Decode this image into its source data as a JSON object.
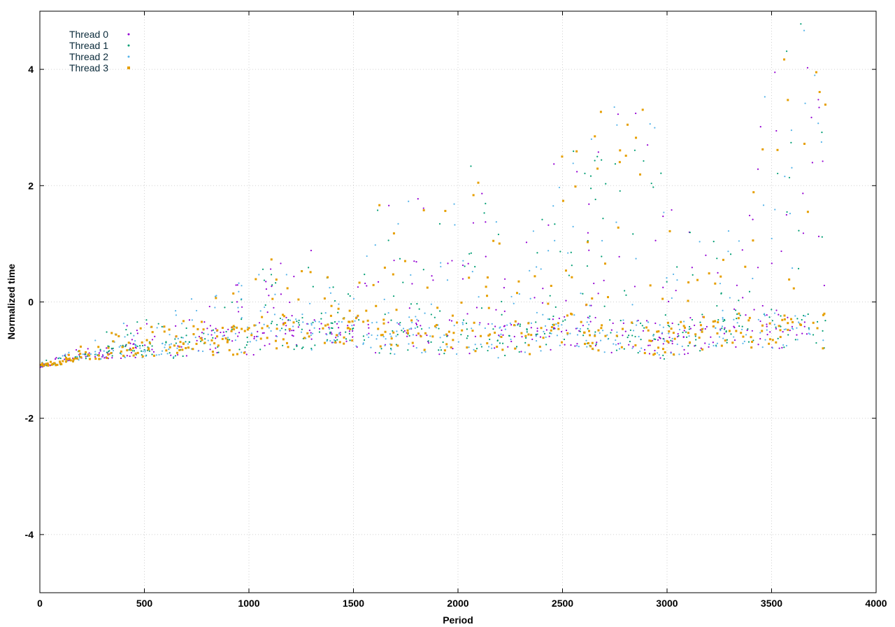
{
  "chart_data": {
    "type": "scatter",
    "title": "",
    "xlabel": "Period",
    "ylabel": "Normalized time",
    "xlim": [
      0,
      4000
    ],
    "ylim": [
      -5,
      5
    ],
    "xticks": [
      0,
      500,
      1000,
      1500,
      2000,
      2500,
      3000,
      3500,
      4000
    ],
    "yticks": [
      -4,
      -2,
      0,
      2,
      4
    ],
    "grid": true,
    "legend_position": "top-left",
    "series": [
      {
        "name": "Thread 0",
        "color": "#9400d3",
        "marker": "dot"
      },
      {
        "name": "Thread 1",
        "color": "#009e73",
        "marker": "dot"
      },
      {
        "name": "Thread 2",
        "color": "#56b4e9",
        "marker": "dot"
      },
      {
        "name": "Thread 3",
        "color": "#e69f00",
        "marker": "square"
      }
    ],
    "profile": [
      {
        "x": 0,
        "base": -1.1,
        "spread": 0.1
      },
      {
        "x": 100,
        "base": -1.05,
        "spread": 0.12
      },
      {
        "x": 200,
        "base": -0.95,
        "spread": 0.2
      },
      {
        "x": 300,
        "base": -0.9,
        "spread": 0.35
      },
      {
        "x": 400,
        "base": -0.85,
        "spread": 0.5
      },
      {
        "x": 500,
        "base": -0.85,
        "spread": 0.55
      },
      {
        "x": 600,
        "base": -0.85,
        "spread": 0.55
      },
      {
        "x": 700,
        "base": -0.75,
        "spread": 0.8
      },
      {
        "x": 800,
        "base": -0.7,
        "spread": 0.9
      },
      {
        "x": 900,
        "base": -0.65,
        "spread": 1.0
      },
      {
        "x": 1000,
        "base": -0.7,
        "spread": 1.0
      },
      {
        "x": 1100,
        "base": -0.5,
        "spread": 1.3
      },
      {
        "x": 1200,
        "base": -0.5,
        "spread": 1.4
      },
      {
        "x": 1300,
        "base": -0.6,
        "spread": 1.6
      },
      {
        "x": 1400,
        "base": -0.55,
        "spread": 0.8
      },
      {
        "x": 1500,
        "base": -0.5,
        "spread": 0.9
      },
      {
        "x": 1600,
        "base": -0.6,
        "spread": 2.4
      },
      {
        "x": 1700,
        "base": -0.6,
        "spread": 2.4
      },
      {
        "x": 1800,
        "base": -0.6,
        "spread": 2.5
      },
      {
        "x": 1900,
        "base": -0.6,
        "spread": 2.6
      },
      {
        "x": 2000,
        "base": -0.6,
        "spread": 2.9
      },
      {
        "x": 2100,
        "base": -0.6,
        "spread": 3.0
      },
      {
        "x": 2200,
        "base": -0.7,
        "spread": 2.0
      },
      {
        "x": 2300,
        "base": -0.6,
        "spread": 1.0
      },
      {
        "x": 2400,
        "base": -0.6,
        "spread": 3.6
      },
      {
        "x": 2500,
        "base": -0.5,
        "spread": 3.5
      },
      {
        "x": 2600,
        "base": -0.5,
        "spread": 3.2
      },
      {
        "x": 2700,
        "base": -0.6,
        "spread": 4.0
      },
      {
        "x": 2800,
        "base": -0.6,
        "spread": 4.3
      },
      {
        "x": 2900,
        "base": -0.6,
        "spread": 4.5
      },
      {
        "x": 3000,
        "base": -0.7,
        "spread": 2.5
      },
      {
        "x": 3100,
        "base": -0.6,
        "spread": 1.8
      },
      {
        "x": 3200,
        "base": -0.5,
        "spread": 1.8
      },
      {
        "x": 3300,
        "base": -0.5,
        "spread": 1.8
      },
      {
        "x": 3400,
        "base": -0.5,
        "spread": 2.6
      },
      {
        "x": 3500,
        "base": -0.5,
        "spread": 5.0
      },
      {
        "x": 3600,
        "base": -0.5,
        "spread": 5.5
      },
      {
        "x": 3700,
        "base": -0.5,
        "spread": 5.5
      },
      {
        "x": 3760,
        "base": -0.5,
        "spread": 5.5
      }
    ],
    "points_per_series": 420
  }
}
